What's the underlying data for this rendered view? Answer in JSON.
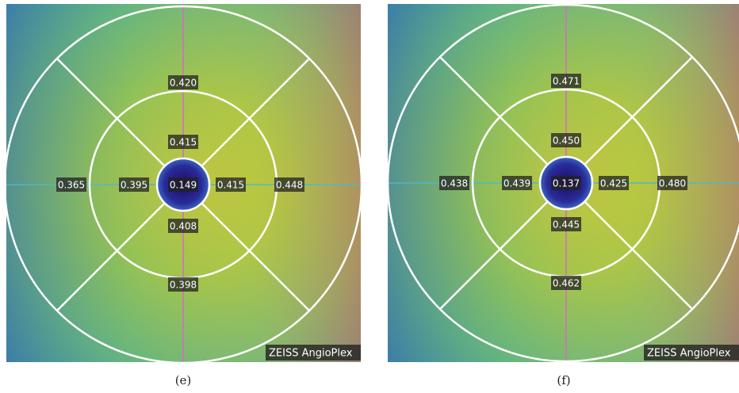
{
  "panels": [
    {
      "label": "(e)",
      "watermark": "ZEISS AngioPlex",
      "values": [
        "0.420",
        "0.415",
        "0.149",
        "0.395",
        "0.415",
        "0.365",
        "0.448",
        "0.408",
        "0.398"
      ]
    },
    {
      "label": "(f)",
      "watermark": "ZEISS AngioPlex",
      "values": [
        "0.471",
        "0.450",
        "0.137",
        "0.439",
        "0.425",
        "0.438",
        "0.480",
        "0.445",
        "0.462"
      ]
    }
  ]
}
